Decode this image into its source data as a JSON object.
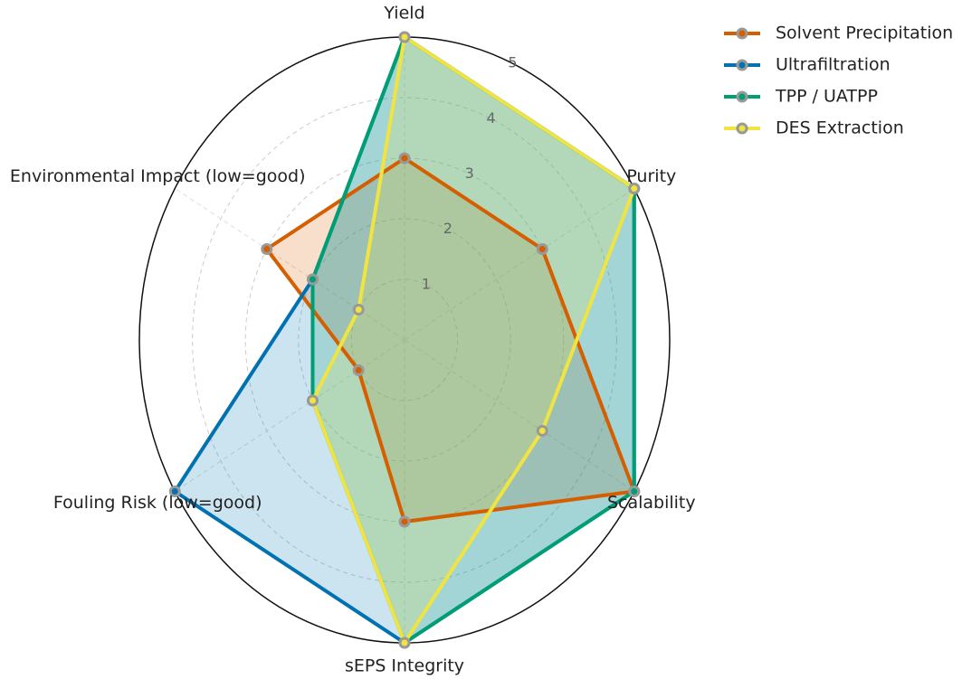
{
  "chart_data": {
    "type": "radar",
    "categories": [
      "Yield",
      "Purity",
      "Scalability",
      "sEPS Integrity",
      "Fouling Risk (low=good)",
      "Environmental Impact (low=good)"
    ],
    "series": [
      {
        "name": "Solvent Precipitation",
        "color": "#d55e00",
        "values": [
          3,
          3,
          5,
          3,
          1,
          3
        ]
      },
      {
        "name": "Ultrafiltration",
        "color": "#0072b2",
        "values": [
          5,
          5,
          5,
          5,
          5,
          2
        ]
      },
      {
        "name": "TPP / UATPP",
        "color": "#009e73",
        "values": [
          5,
          5,
          5,
          5,
          2,
          2
        ]
      },
      {
        "name": "DES Extraction",
        "color": "#f0e442",
        "values": [
          5,
          5,
          3,
          5,
          2,
          1
        ]
      }
    ],
    "ylim": [
      0,
      5
    ],
    "yticks": [
      1,
      2,
      3,
      4,
      5
    ],
    "grid": true,
    "legend": "upper right"
  }
}
